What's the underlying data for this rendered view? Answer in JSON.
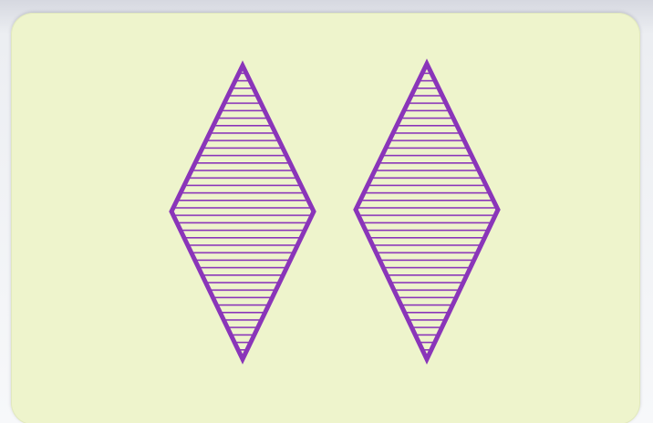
{
  "card": {
    "count": 2,
    "shape": "diamond",
    "shading": "striped",
    "color_name": "purple",
    "colors": {
      "card_background": "#eef4cc",
      "shape_stroke": "#8a35b9"
    }
  }
}
